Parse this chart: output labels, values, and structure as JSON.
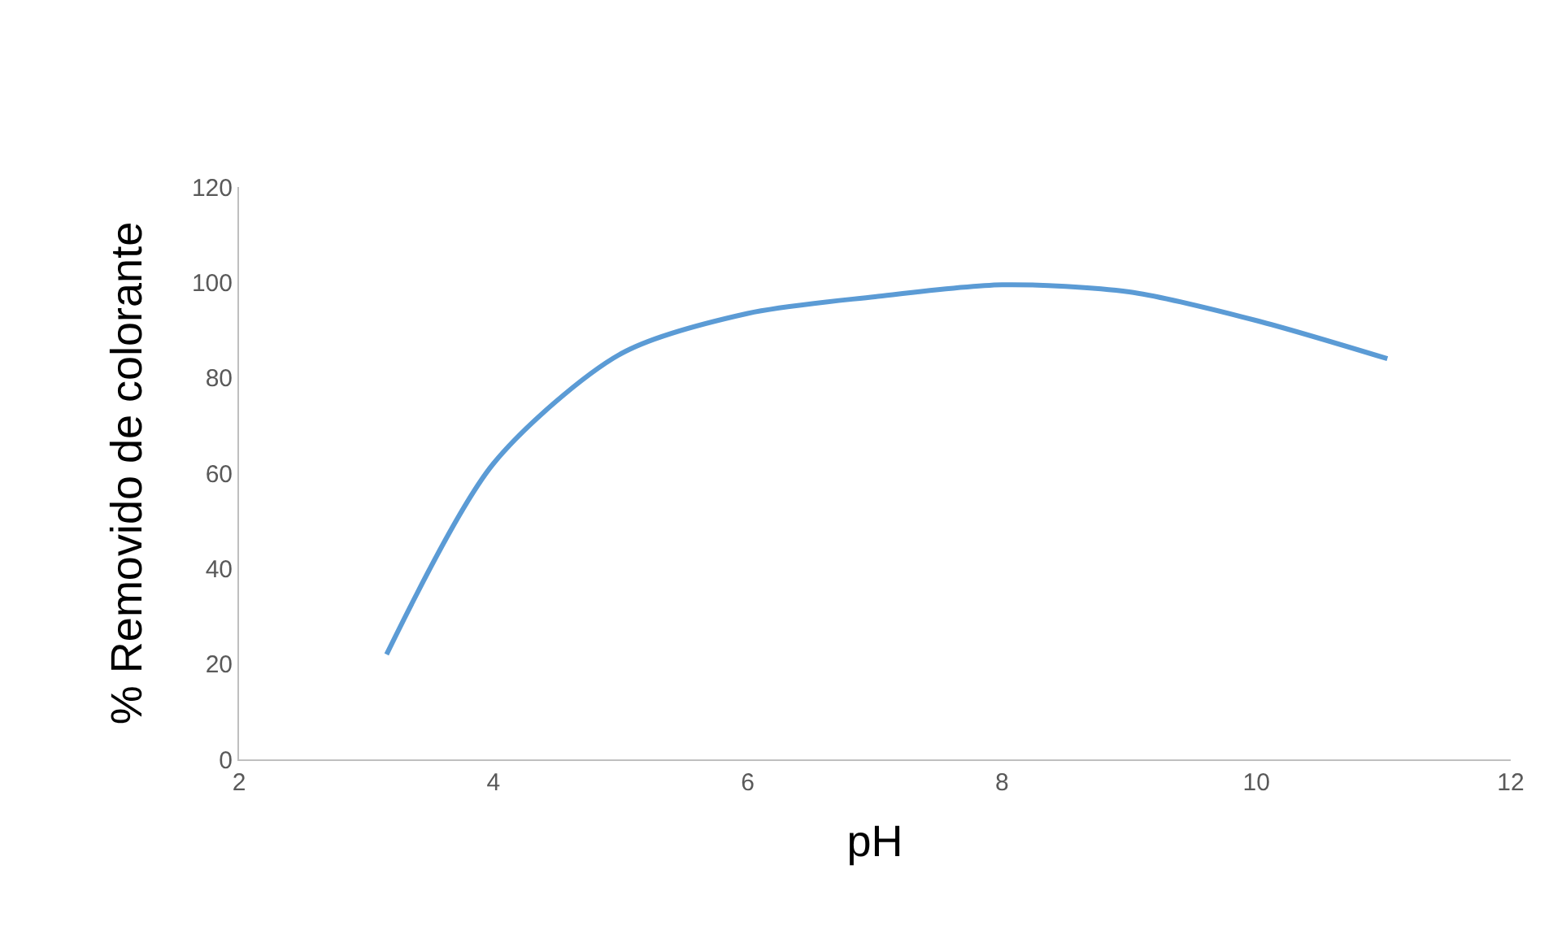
{
  "chart_data": {
    "type": "line",
    "xlabel": "pH",
    "ylabel": "% Removido de colorante",
    "x": [
      3.16,
      4,
      5,
      6,
      7,
      8,
      9,
      10,
      11.03
    ],
    "series": [
      {
        "color": "#5b9bd5",
        "values": [
          22,
          62,
          85,
          93.5,
          97,
          99.5,
          98,
          92,
          84
        ]
      }
    ],
    "xlim": [
      2,
      12
    ],
    "xticks": [
      2,
      4,
      6,
      8,
      10,
      12
    ],
    "ylim": [
      0,
      120
    ],
    "yticks": [
      0,
      20,
      40,
      60,
      80,
      100,
      120
    ],
    "grid": false,
    "legend": false,
    "marker": "none",
    "line_style": "solid"
  }
}
